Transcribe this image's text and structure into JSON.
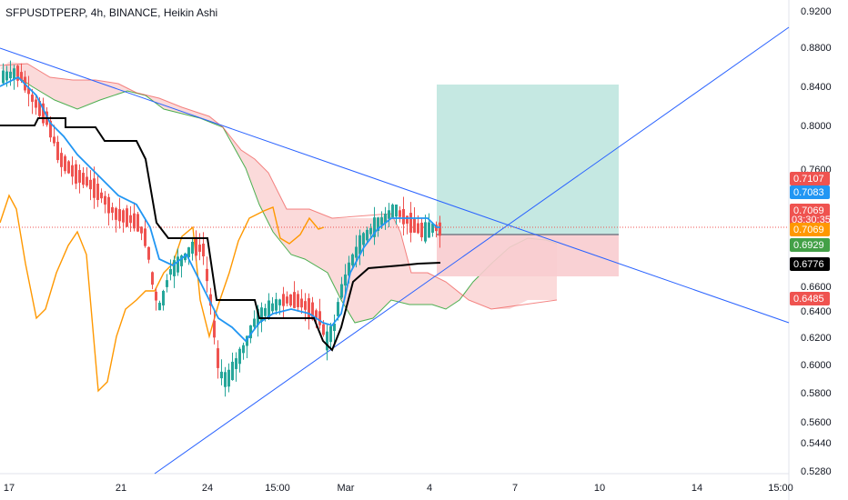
{
  "chart_data": {
    "type": "candlestick",
    "title": "SFPUSDTPERP, 4h, BINANCE, Heikin Ashi",
    "ylim": [
      0.52,
      0.93
    ],
    "y_axis_scale": "log",
    "y_ticks": [
      "0.9200",
      "0.8800",
      "0.8400",
      "0.8000",
      "0.7600",
      "0.6600",
      "0.6400",
      "0.6200",
      "0.6000",
      "0.5800",
      "0.5600",
      "0.5440",
      "0.5280"
    ],
    "x_ticks": [
      "17",
      "21",
      "24",
      "15:00",
      "Mar",
      "4",
      "7",
      "10",
      "14",
      "15:00"
    ],
    "price_tags": [
      {
        "label": "0.7107",
        "value": 0.7107,
        "color": "#ef5350"
      },
      {
        "label": "0.7083",
        "value": 0.7083,
        "color": "#2196f3"
      },
      {
        "label": "0.7069",
        "value": 0.7069,
        "color": "#ef5350",
        "sub": "03:30:35"
      },
      {
        "label": "0.7069",
        "value": 0.7069,
        "color": "#ff9800"
      },
      {
        "label": "0.6929",
        "value": 0.6929,
        "color": "#43a047"
      },
      {
        "label": "0.6776",
        "value": 0.6776,
        "color": "#000000"
      },
      {
        "label": "0.6485",
        "value": 0.6485,
        "color": "#ef5350"
      }
    ],
    "colors": {
      "up": "#26a69a",
      "down": "#ef5350",
      "tenkan": "#2196f3",
      "kijun": "#000000",
      "lagging": "#ff9800",
      "trendline": "#2962ff",
      "profit": "#bfe6df",
      "loss": "#f8cccf",
      "cloud": "#fbd8d8"
    }
  }
}
